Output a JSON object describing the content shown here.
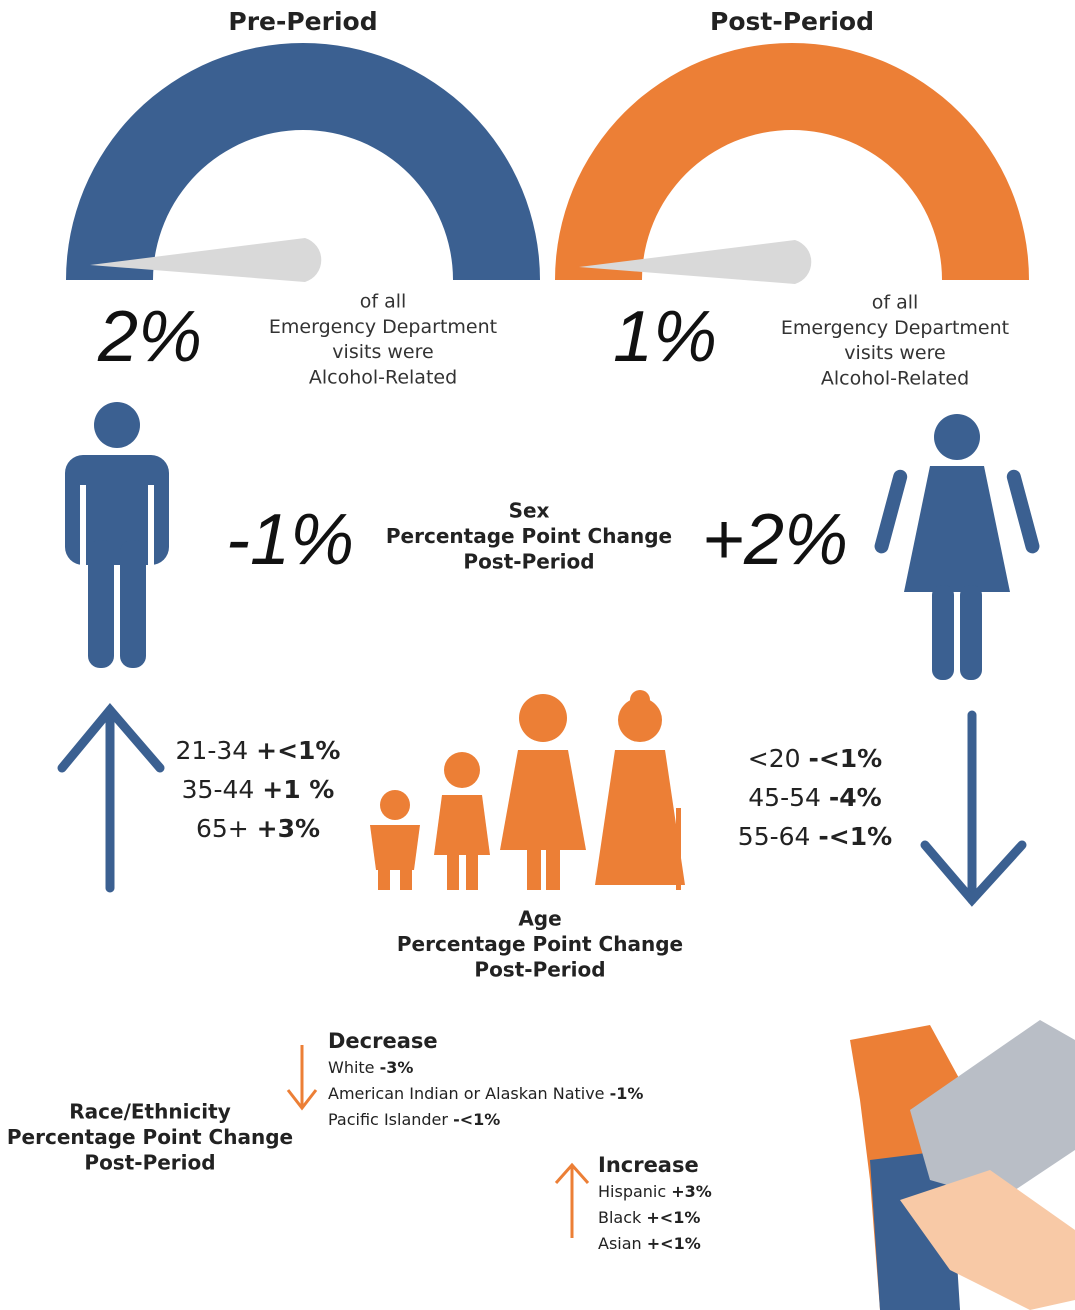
{
  "pre": {
    "title": "Pre-Period",
    "value": "2%",
    "caption": [
      "of all",
      "Emergency Department",
      "visits were",
      "Alcohol-Related"
    ]
  },
  "post": {
    "title": "Post-Period",
    "value": "1%",
    "caption": [
      "of all",
      "Emergency Department",
      "visits were",
      "Alcohol-Related"
    ]
  },
  "sex": {
    "title": [
      "Sex",
      "Percentage Point Change",
      "Post-Period"
    ],
    "male": "-1%",
    "female": "+2%"
  },
  "age": {
    "title": [
      "Age",
      "Percentage Point Change",
      "Post-Period"
    ],
    "increase": [
      {
        "group": "21-34",
        "change": "+<1%"
      },
      {
        "group": "35-44",
        "change": "+1 %"
      },
      {
        "group": "65+",
        "change": "+3%"
      }
    ],
    "decrease": [
      {
        "group": "<20",
        "change": "-<1%"
      },
      {
        "group": "45-54",
        "change": "-4%"
      },
      {
        "group": "55-64",
        "change": "-<1%"
      }
    ]
  },
  "race": {
    "title": [
      "Race/Ethnicity",
      "Percentage Point Change",
      "Post-Period"
    ],
    "decrease": {
      "heading": "Decrease",
      "items": [
        {
          "name": "White",
          "change": "-3%"
        },
        {
          "name": "American Indian or Alaskan Native",
          "change": "-1%"
        },
        {
          "name": "Pacific Islander",
          "change": "-<1%"
        }
      ]
    },
    "increase": {
      "heading": "Increase",
      "items": [
        {
          "name": "Hispanic",
          "change": "+3%"
        },
        {
          "name": "Black",
          "change": "+<1%"
        },
        {
          "name": "Asian",
          "change": "+<1%"
        }
      ]
    }
  }
}
